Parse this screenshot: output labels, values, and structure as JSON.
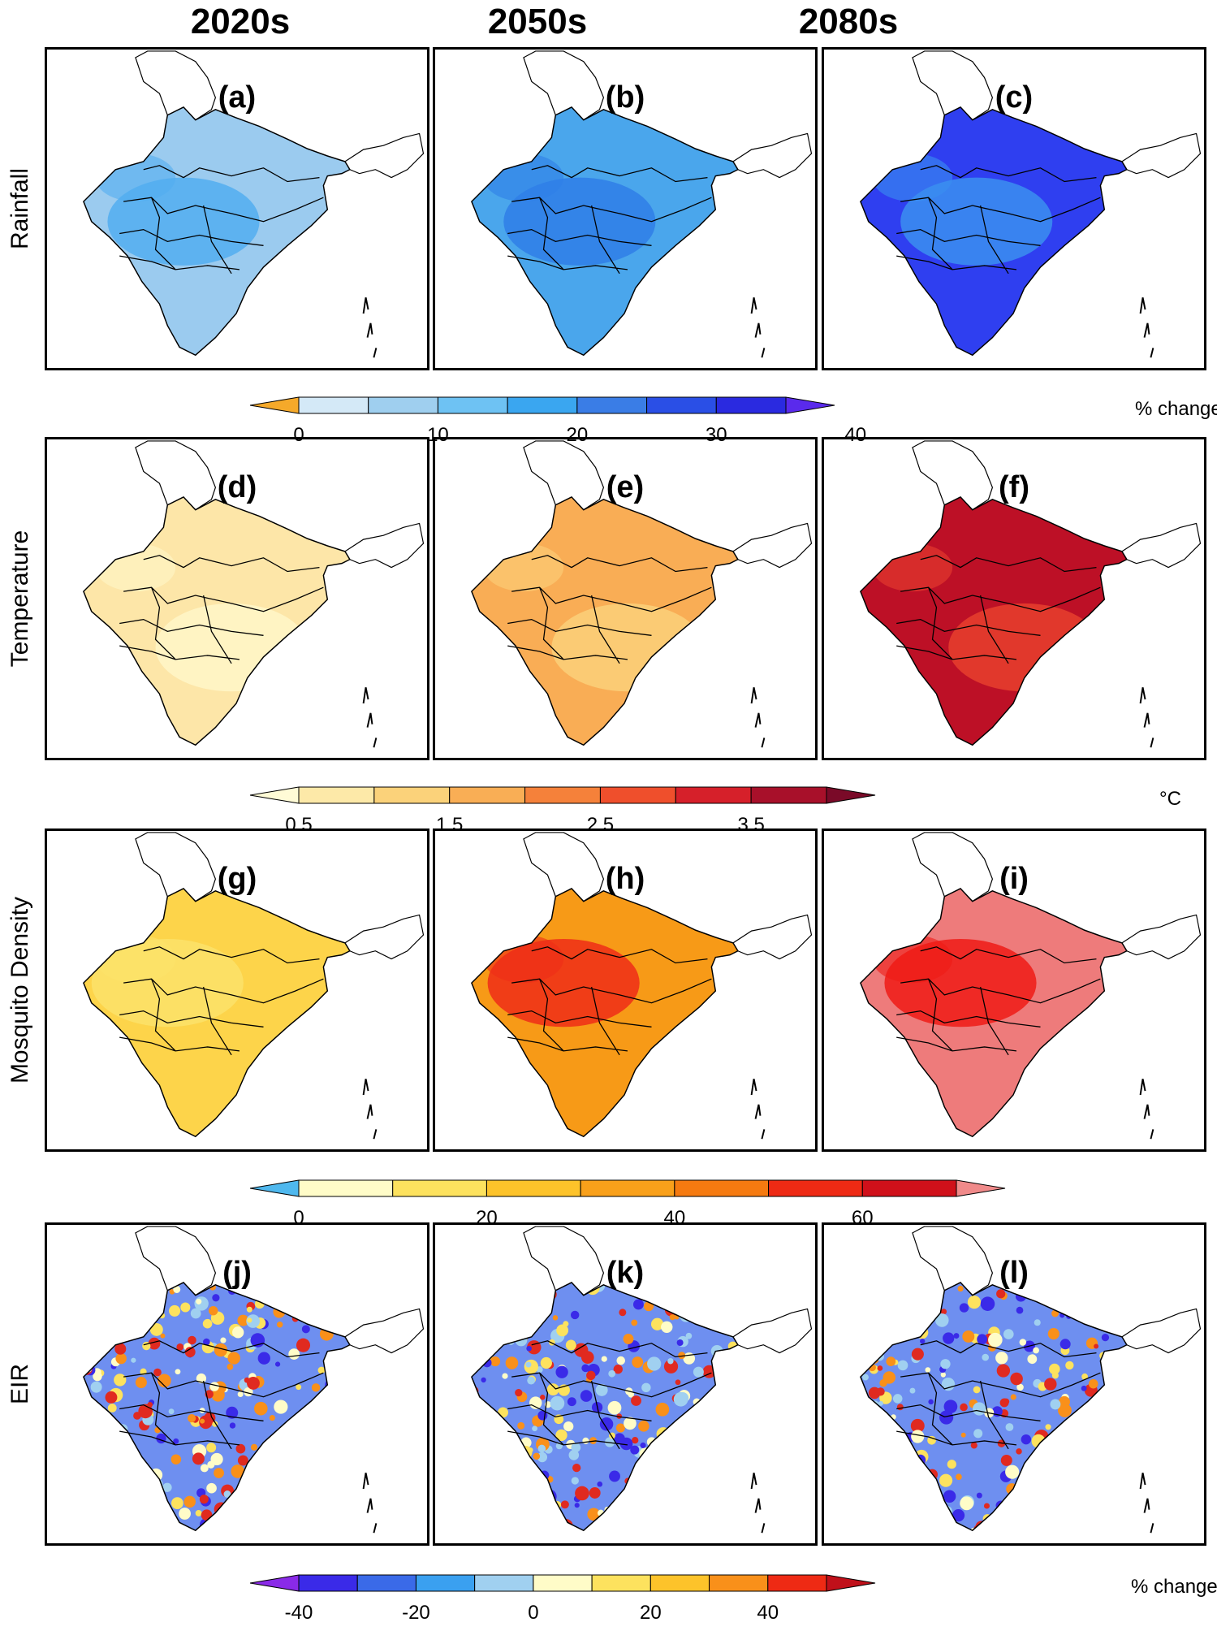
{
  "columns": [
    "2020s",
    "2050s",
    "2080s"
  ],
  "rows": [
    {
      "label": "Rainfall",
      "panels": [
        "(a)",
        "(b)",
        "(c)"
      ],
      "fills": [
        "#9bcbef",
        "#4aa6ec",
        "#2f3ff0"
      ],
      "accents": [
        "#52aef0",
        "#2f7ee8",
        "#3b8ff0"
      ]
    },
    {
      "label": "Temperature",
      "panels": [
        "(d)",
        "(e)",
        "(f)"
      ],
      "fills": [
        "#fde6a8",
        "#f9ad55",
        "#bd1026"
      ],
      "accents": [
        "#fff6c8",
        "#fbd07a",
        "#e8402e"
      ]
    },
    {
      "label": "Mosquito Density",
      "panels": [
        "(g)",
        "(h)",
        "(i)"
      ],
      "fills": [
        "#fdd44a",
        "#f79a17",
        "#ee7b7b"
      ],
      "accents": [
        "#fbe26a",
        "#ef2d17",
        "#ee1b16"
      ]
    },
    {
      "label": "EIR",
      "panels": [
        "(j)",
        "(k)",
        "(l)"
      ],
      "fills": [
        "#6e8ff0",
        "#6e8ff0",
        "#6e8ff0"
      ],
      "accents": [
        "#e02a20",
        "#e02a20",
        "#e02a20"
      ]
    }
  ],
  "colorbars": [
    {
      "id": "rainfall",
      "ticks": [
        "0",
        "10",
        "20",
        "30",
        "40"
      ],
      "unit": "% change",
      "colors": [
        "#f5a92a",
        "#d4e9f7",
        "#9fcfef",
        "#6ec2f3",
        "#3aa6f0",
        "#3a7de6",
        "#2a4fe6",
        "#2a2ae0",
        "#5a2aec"
      ]
    },
    {
      "id": "temperature",
      "ticks": [
        "0.5",
        "1.5",
        "2.5",
        "3.5"
      ],
      "unit": "°C",
      "colors": [
        "#fffbd6",
        "#fde9a8",
        "#fbd27a",
        "#f9ae55",
        "#f5813a",
        "#ef4f2c",
        "#d6202a",
        "#a8102a",
        "#7a0a28"
      ]
    },
    {
      "id": "mosquito",
      "ticks": [
        "0",
        "20",
        "40",
        "60"
      ],
      "unit": "",
      "colors": [
        "#4fb8ee",
        "#fffcc8",
        "#fde25e",
        "#fdc32a",
        "#f9a01a",
        "#f57a10",
        "#ee2a14",
        "#d0101a",
        "#f08a8a"
      ]
    },
    {
      "id": "eir",
      "ticks": [
        "-40",
        "-20",
        "0",
        "20",
        "40"
      ],
      "unit": "% change",
      "colors": [
        "#8a2ae8",
        "#3a2ae8",
        "#3a6ae8",
        "#3aa0f0",
        "#a0d0f0",
        "#fffcc8",
        "#fde25e",
        "#fdc32a",
        "#f9901a",
        "#ee2a14",
        "#c0101a"
      ]
    }
  ]
}
